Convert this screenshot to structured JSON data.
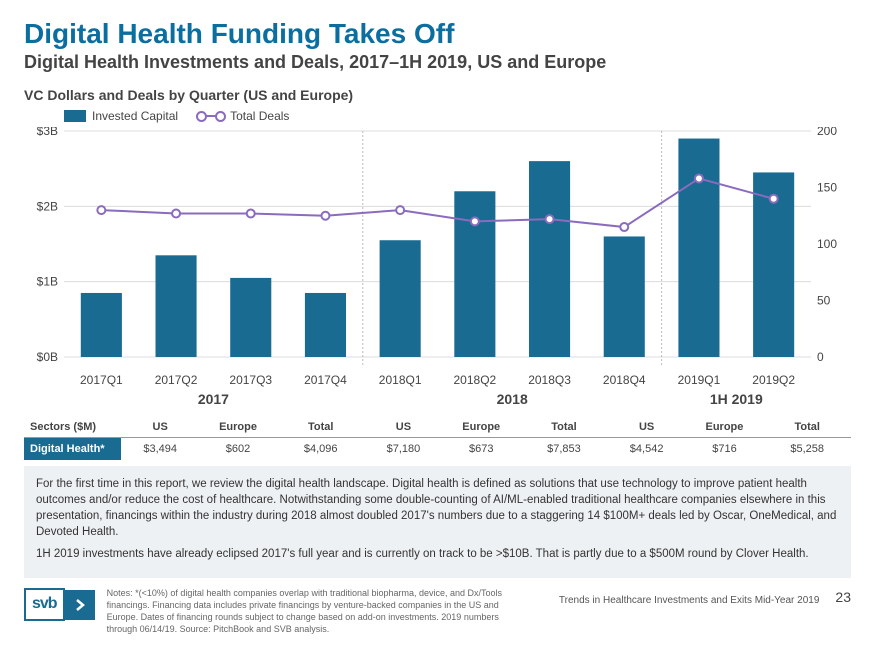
{
  "title": "Digital Health Funding Takes Off",
  "subtitle": "Digital Health Investments and Deals, 2017–1H 2019, US and Europe",
  "chart": {
    "header": "VC Dollars and Deals by Quarter (US and Europe)",
    "legend": {
      "bar": "Invested Capital",
      "line": "Total Deals"
    },
    "left_axis": {
      "label_ticks": [
        "$0B",
        "$1B",
        "$2B",
        "$3B"
      ],
      "min": 0,
      "max": 3
    },
    "right_axis": {
      "label_ticks": [
        "0",
        "50",
        "100",
        "150",
        "200"
      ],
      "min": 0,
      "max": 200
    },
    "colors": {
      "bar": "#1a6b91",
      "line": "#8a6bbd",
      "marker_fill": "#ffffff",
      "grid": "#dcdcdc",
      "year_sep": "#b8b8b8",
      "bg": "#ffffff"
    },
    "groups": [
      {
        "year": "2017",
        "quarters": [
          "2017Q1",
          "2017Q2",
          "2017Q3",
          "2017Q4"
        ],
        "bars": [
          0.85,
          1.35,
          1.05,
          0.85
        ],
        "deals": [
          130,
          127,
          127,
          125
        ]
      },
      {
        "year": "2018",
        "quarters": [
          "2018Q1",
          "2018Q2",
          "2018Q3",
          "2018Q4"
        ],
        "bars": [
          1.55,
          2.2,
          2.6,
          1.6
        ],
        "deals": [
          130,
          120,
          122,
          115
        ]
      },
      {
        "year": "1H 2019",
        "quarters": [
          "2019Q1",
          "2019Q2"
        ],
        "bars": [
          2.9,
          2.45
        ],
        "deals": [
          158,
          140
        ]
      }
    ],
    "bar_width_ratio": 0.55,
    "marker_radius": 4,
    "line_width": 2
  },
  "sectors": {
    "header_label": "Sectors ($M)",
    "columns": [
      "US",
      "Europe",
      "Total",
      "US",
      "Europe",
      "Total",
      "US",
      "Europe",
      "Total"
    ],
    "row_label": "Digital Health*",
    "values": [
      "$3,494",
      "$602",
      "$4,096",
      "$7,180",
      "$673",
      "$7,853",
      "$4,542",
      "$716",
      "$5,258"
    ]
  },
  "notes": {
    "p1": "For the first time in this report, we review the digital health landscape. Digital health is defined as solutions that use technology to improve patient health outcomes and/or reduce the cost of healthcare. Notwithstanding some double-counting of AI/ML-enabled traditional healthcare companies elsewhere in this presentation, financings within the industry during 2018 almost doubled 2017's numbers due to a staggering 14 $100M+ deals led by Oscar, OneMedical, and Devoted Health.",
    "p2": "1H 2019 investments have already eclipsed 2017's full year and is currently on track to be >$10B. That is partly due to a $500M round by Clover Health."
  },
  "footer": {
    "logo_text": "svb",
    "fine_print": "Notes: *(<10%) of digital health companies overlap with traditional biopharma, device, and Dx/Tools financings. Financing data includes private financings by venture-backed companies in the US and Europe. Dates of financing rounds subject to change based on add-on investments. 2019 numbers through 06/14/19. Source: PitchBook and SVB analysis.",
    "report_name": "Trends in Healthcare Investments and Exits Mid-Year 2019",
    "page": "23"
  }
}
